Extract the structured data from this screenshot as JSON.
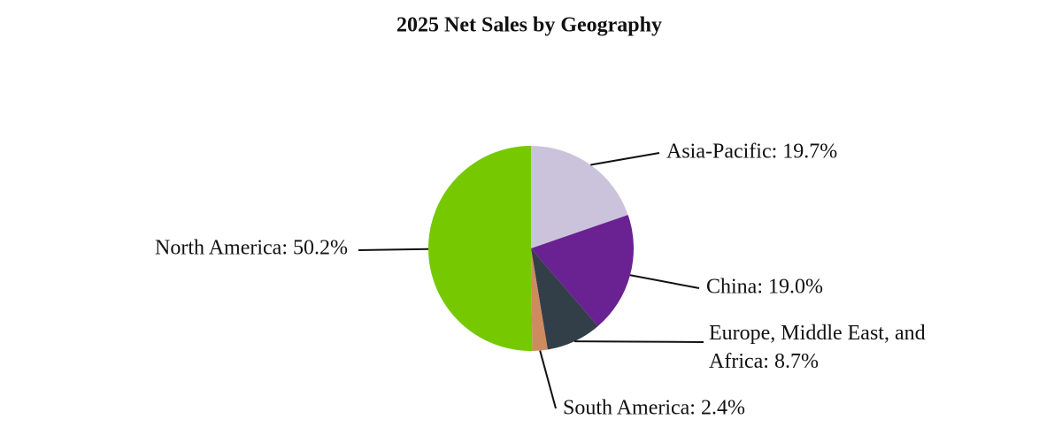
{
  "chart_data": {
    "type": "pie",
    "title": "2025 Net Sales by Geography",
    "labels": [
      "Asia-Pacific: 19.7%",
      "China: 19.0%",
      "Europe, Middle East, and Africa: 8.7%",
      "South America: 2.4%",
      "North America: 50.2%"
    ],
    "values": [
      19.7,
      19.0,
      8.7,
      2.4,
      50.2
    ],
    "colors": [
      "#cbc3dc",
      "#6a2192",
      "#333f48",
      "#cd8b5f",
      "#76c900"
    ]
  }
}
